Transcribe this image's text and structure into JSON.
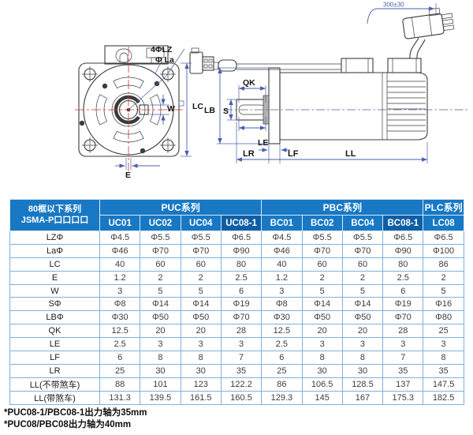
{
  "drawing": {
    "front": {
      "label_4lz": "4ΦLZ",
      "label_la": "Φ La",
      "label_w": "W",
      "label_lc": "LC",
      "label_e": "E"
    },
    "side": {
      "label_qk": "QK",
      "label_s": "S",
      "label_lb": "LB",
      "label_le": "LE",
      "label_lr": "LR",
      "label_lf": "LF",
      "label_ll": "LL",
      "label_cable": "300±30"
    }
  },
  "table": {
    "header": {
      "title_line1": "80框以下系列",
      "title_line2": "JSMA-P口口口口",
      "groups": [
        {
          "label": "PUC系列",
          "models": [
            "UC01",
            "UC02",
            "UC04",
            "UC08-1"
          ]
        },
        {
          "label": "PBC系列",
          "models": [
            "BC01",
            "BC02",
            "BC04",
            "BC08-1"
          ]
        },
        {
          "label": "PLC系列",
          "models": [
            "LC08"
          ]
        }
      ]
    },
    "rows": [
      {
        "label": "LZΦ",
        "values": [
          "Φ4.5",
          "Φ5.5",
          "Φ5.5",
          "Φ6.5",
          "Φ4.5",
          "Φ5.5",
          "Φ5.5",
          "Φ6.5",
          "Φ6.5"
        ]
      },
      {
        "label": "LaΦ",
        "values": [
          "Φ46",
          "Φ70",
          "Φ70",
          "Φ90",
          "Φ46",
          "Φ70",
          "Φ70",
          "Φ90",
          "Φ100"
        ]
      },
      {
        "label": "LC",
        "values": [
          "40",
          "60",
          "60",
          "80",
          "40",
          "60",
          "60",
          "80",
          "86"
        ]
      },
      {
        "label": "E",
        "values": [
          "1.2",
          "2",
          "2",
          "2.5",
          "1.2",
          "2",
          "2",
          "2.5",
          "2"
        ]
      },
      {
        "label": "W",
        "values": [
          "3",
          "5",
          "5",
          "6",
          "3",
          "5",
          "5",
          "6",
          "5"
        ]
      },
      {
        "label": "SΦ",
        "values": [
          "Φ8",
          "Φ14",
          "Φ14",
          "Φ19",
          "Φ8",
          "Φ14",
          "Φ14",
          "Φ19",
          "Φ16"
        ]
      },
      {
        "label": "LBΦ",
        "values": [
          "Φ30",
          "Φ50",
          "Φ50",
          "Φ70",
          "Φ30",
          "Φ50",
          "Φ50",
          "Φ70",
          "Φ80"
        ]
      },
      {
        "label": "QK",
        "values": [
          "12.5",
          "20",
          "20",
          "28",
          "12.5",
          "20",
          "20",
          "28",
          "25"
        ]
      },
      {
        "label": "LE",
        "values": [
          "2.5",
          "3",
          "3",
          "3",
          "2.5",
          "3",
          "3",
          "3",
          "3"
        ]
      },
      {
        "label": "LF",
        "values": [
          "6",
          "8",
          "8",
          "7",
          "6",
          "8",
          "8",
          "7",
          "8"
        ]
      },
      {
        "label": "LR",
        "values": [
          "25",
          "30",
          "30",
          "35",
          "25",
          "30",
          "30",
          "35",
          "35"
        ]
      },
      {
        "label": "LL(不带煞车)",
        "values": [
          "88",
          "101",
          "123",
          "122.2",
          "86",
          "106.5",
          "128.5",
          "137",
          "147.5"
        ]
      },
      {
        "label": "LL(带煞车)",
        "values": [
          "131.3",
          "139.5",
          "161.5",
          "160.5",
          "129.3",
          "145",
          "167",
          "175.3",
          "182.5"
        ]
      }
    ]
  },
  "notes": [
    "*PUC08-1/PBC08-1出力轴为35mm",
    "*PUC08/PBC08出力轴为40mm"
  ],
  "colors": {
    "header_blue": "#1878c4",
    "header_blue_dark": "#0d5fa5",
    "table_border": "#7fb0dd",
    "dim_blue": "#4a5fb0",
    "centerline_red": "#cc3333"
  }
}
